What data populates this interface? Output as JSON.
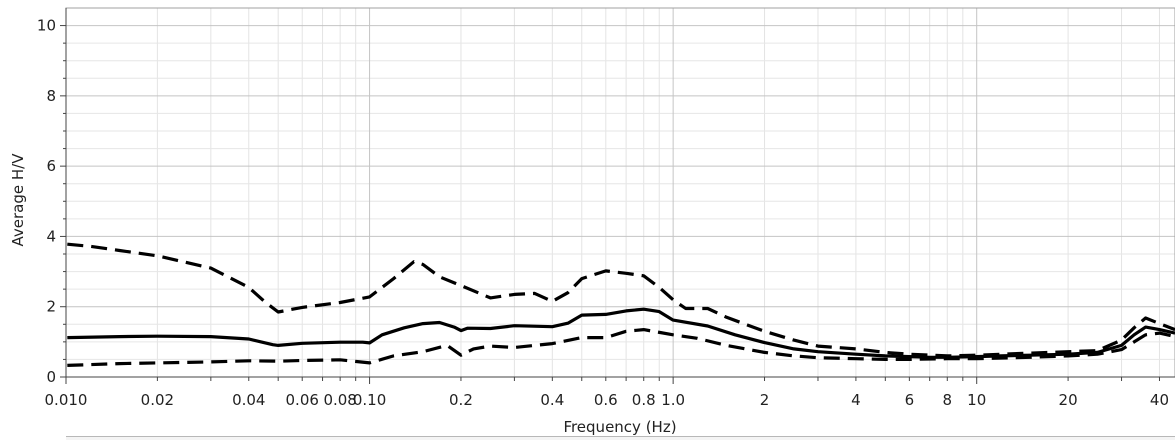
{
  "chart_data": {
    "type": "line",
    "xscale": "log",
    "xlim": [
      0.01,
      45
    ],
    "ylim": [
      0,
      10.5
    ],
    "grid": true,
    "xlabel": "Frequency (Hz)",
    "ylabel": "Average H/V",
    "x_ticks": [
      0.01,
      0.02,
      0.04,
      0.06,
      0.08,
      0.1,
      0.2,
      0.4,
      0.6,
      0.8,
      1.0,
      2,
      4,
      6,
      8,
      10,
      20,
      40
    ],
    "x_tick_labels": [
      "0.010",
      "0.02",
      "0.04",
      "0.06",
      "0.08",
      "0.10",
      "0.2",
      "0.4",
      "0.6",
      "0.8",
      "1.0",
      "2",
      "4",
      "6",
      "8",
      "10",
      "20",
      "40"
    ],
    "y_ticks": [
      0,
      2,
      4,
      6,
      8,
      10
    ],
    "y_tick_labels": [
      "0",
      "2",
      "4",
      "6",
      "8",
      "10"
    ],
    "series": [
      {
        "role": "mean",
        "color": "#000000",
        "dash": "solid",
        "points": [
          [
            0.0101,
            1.12
          ],
          [
            0.015,
            1.15
          ],
          [
            0.02,
            1.16
          ],
          [
            0.03,
            1.15
          ],
          [
            0.04,
            1.08
          ],
          [
            0.048,
            0.92
          ],
          [
            0.05,
            0.9
          ],
          [
            0.06,
            0.96
          ],
          [
            0.08,
            0.99
          ],
          [
            0.095,
            0.99
          ],
          [
            0.1,
            0.97
          ],
          [
            0.11,
            1.2
          ],
          [
            0.13,
            1.4
          ],
          [
            0.15,
            1.52
          ],
          [
            0.17,
            1.55
          ],
          [
            0.19,
            1.42
          ],
          [
            0.2,
            1.32
          ],
          [
            0.21,
            1.39
          ],
          [
            0.25,
            1.38
          ],
          [
            0.3,
            1.46
          ],
          [
            0.4,
            1.43
          ],
          [
            0.45,
            1.53
          ],
          [
            0.5,
            1.76
          ],
          [
            0.6,
            1.78
          ],
          [
            0.7,
            1.88
          ],
          [
            0.8,
            1.93
          ],
          [
            0.9,
            1.86
          ],
          [
            1.0,
            1.62
          ],
          [
            1.3,
            1.45
          ],
          [
            1.6,
            1.2
          ],
          [
            2.0,
            0.98
          ],
          [
            2.5,
            0.8
          ],
          [
            3.0,
            0.72
          ],
          [
            4.0,
            0.65
          ],
          [
            5.0,
            0.6
          ],
          [
            6.0,
            0.58
          ],
          [
            7.0,
            0.56
          ],
          [
            8.0,
            0.56
          ],
          [
            10.0,
            0.58
          ],
          [
            12.0,
            0.6
          ],
          [
            15.0,
            0.62
          ],
          [
            20.0,
            0.65
          ],
          [
            25.0,
            0.7
          ],
          [
            30.0,
            0.9
          ],
          [
            33.0,
            1.2
          ],
          [
            36.0,
            1.42
          ],
          [
            40.0,
            1.35
          ],
          [
            45.0,
            1.25
          ]
        ]
      },
      {
        "role": "upper",
        "color": "#000000",
        "dash": "dashed",
        "points": [
          [
            0.0101,
            3.78
          ],
          [
            0.012,
            3.72
          ],
          [
            0.015,
            3.6
          ],
          [
            0.02,
            3.45
          ],
          [
            0.03,
            3.1
          ],
          [
            0.04,
            2.55
          ],
          [
            0.045,
            2.15
          ],
          [
            0.05,
            1.85
          ],
          [
            0.06,
            1.98
          ],
          [
            0.08,
            2.12
          ],
          [
            0.1,
            2.28
          ],
          [
            0.12,
            2.8
          ],
          [
            0.14,
            3.28
          ],
          [
            0.15,
            3.2
          ],
          [
            0.17,
            2.85
          ],
          [
            0.2,
            2.6
          ],
          [
            0.25,
            2.25
          ],
          [
            0.3,
            2.35
          ],
          [
            0.35,
            2.38
          ],
          [
            0.4,
            2.15
          ],
          [
            0.45,
            2.4
          ],
          [
            0.5,
            2.8
          ],
          [
            0.6,
            3.02
          ],
          [
            0.7,
            2.95
          ],
          [
            0.8,
            2.88
          ],
          [
            0.9,
            2.55
          ],
          [
            1.0,
            2.2
          ],
          [
            1.1,
            1.95
          ],
          [
            1.3,
            1.95
          ],
          [
            1.5,
            1.7
          ],
          [
            2.0,
            1.3
          ],
          [
            2.5,
            1.05
          ],
          [
            3.0,
            0.88
          ],
          [
            4.0,
            0.8
          ],
          [
            5.0,
            0.7
          ],
          [
            6.0,
            0.65
          ],
          [
            8.0,
            0.6
          ],
          [
            10.0,
            0.62
          ],
          [
            15.0,
            0.68
          ],
          [
            20.0,
            0.72
          ],
          [
            25.0,
            0.75
          ],
          [
            30.0,
            1.05
          ],
          [
            33.0,
            1.4
          ],
          [
            36.0,
            1.68
          ],
          [
            40.0,
            1.52
          ],
          [
            45.0,
            1.35
          ]
        ]
      },
      {
        "role": "lower",
        "color": "#000000",
        "dash": "dashed",
        "points": [
          [
            0.0101,
            0.33
          ],
          [
            0.015,
            0.38
          ],
          [
            0.02,
            0.4
          ],
          [
            0.03,
            0.43
          ],
          [
            0.04,
            0.46
          ],
          [
            0.05,
            0.45
          ],
          [
            0.06,
            0.47
          ],
          [
            0.08,
            0.49
          ],
          [
            0.1,
            0.4
          ],
          [
            0.12,
            0.6
          ],
          [
            0.15,
            0.72
          ],
          [
            0.18,
            0.9
          ],
          [
            0.2,
            0.62
          ],
          [
            0.22,
            0.8
          ],
          [
            0.25,
            0.88
          ],
          [
            0.3,
            0.84
          ],
          [
            0.4,
            0.95
          ],
          [
            0.5,
            1.12
          ],
          [
            0.6,
            1.12
          ],
          [
            0.7,
            1.3
          ],
          [
            0.8,
            1.35
          ],
          [
            1.0,
            1.2
          ],
          [
            1.2,
            1.1
          ],
          [
            1.5,
            0.9
          ],
          [
            2.0,
            0.7
          ],
          [
            2.5,
            0.6
          ],
          [
            3.0,
            0.55
          ],
          [
            4.0,
            0.52
          ],
          [
            5.0,
            0.5
          ],
          [
            6.0,
            0.5
          ],
          [
            8.0,
            0.52
          ],
          [
            10.0,
            0.52
          ],
          [
            15.0,
            0.56
          ],
          [
            20.0,
            0.6
          ],
          [
            25.0,
            0.65
          ],
          [
            30.0,
            0.78
          ],
          [
            33.0,
            1.0
          ],
          [
            36.0,
            1.2
          ],
          [
            40.0,
            1.25
          ],
          [
            45.0,
            1.15
          ]
        ]
      }
    ]
  }
}
